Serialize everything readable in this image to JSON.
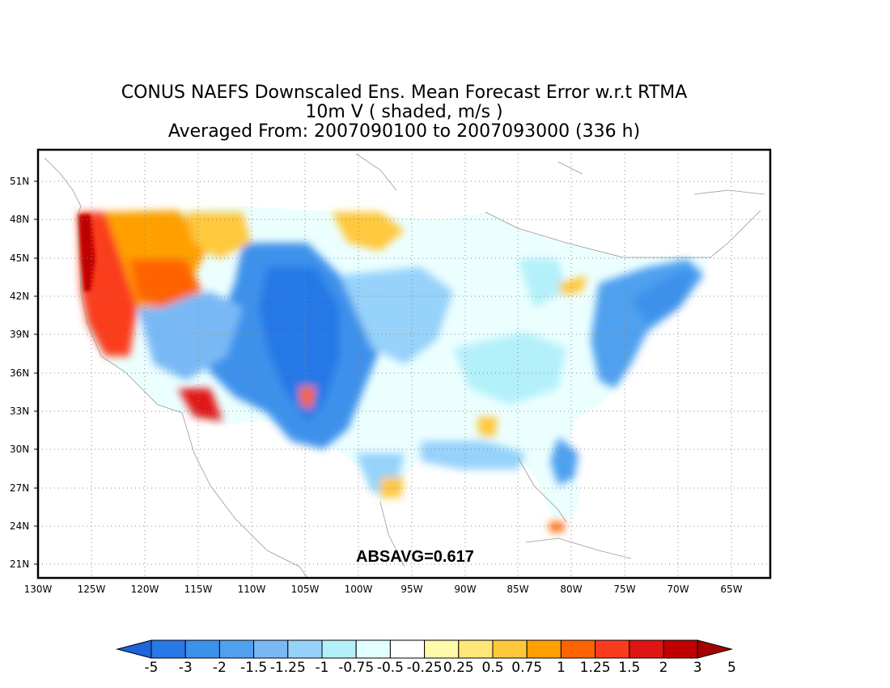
{
  "title": {
    "line1": "CONUS NAEFS Downscaled Ens. Mean Forecast Error w.r.t RTMA",
    "line2": "10m V ( shaded, m/s )",
    "line3": "Averaged From: 2007090100 to 2007093000 (336 h)"
  },
  "lat_labels": [
    "51N",
    "48N",
    "45N",
    "42N",
    "39N",
    "36N",
    "33N",
    "30N",
    "27N",
    "24N",
    "21N"
  ],
  "lon_labels": [
    "130W",
    "125W",
    "120W",
    "115W",
    "110W",
    "105W",
    "100W",
    "95W",
    "90W",
    "85W",
    "80W",
    "75W",
    "70W",
    "65W"
  ],
  "annotation": "ABSAVG=0.617",
  "colorbar": {
    "labels": [
      "-5",
      "-3",
      "-2",
      "-1.5",
      "-1.25",
      "-1",
      "-0.75",
      "-0.5",
      "-0.25",
      "0.25",
      "0.5",
      "0.75",
      "1",
      "1.25",
      "1.5",
      "2",
      "3",
      "5"
    ],
    "colors": [
      "#1e64dc",
      "#2878e6",
      "#3c91eb",
      "#50a0ef",
      "#78b9f5",
      "#96d2fa",
      "#b4f0fa",
      "#e1ffff",
      "#ffffff",
      "#fffaaa",
      "#ffe678",
      "#ffc83c",
      "#ffa000",
      "#ff6400",
      "#fa3c1e",
      "#e11414",
      "#c00000",
      "#a50000"
    ]
  },
  "colors": {
    "frame": "#000000",
    "grid": "#888888",
    "coastline": "#999999"
  }
}
